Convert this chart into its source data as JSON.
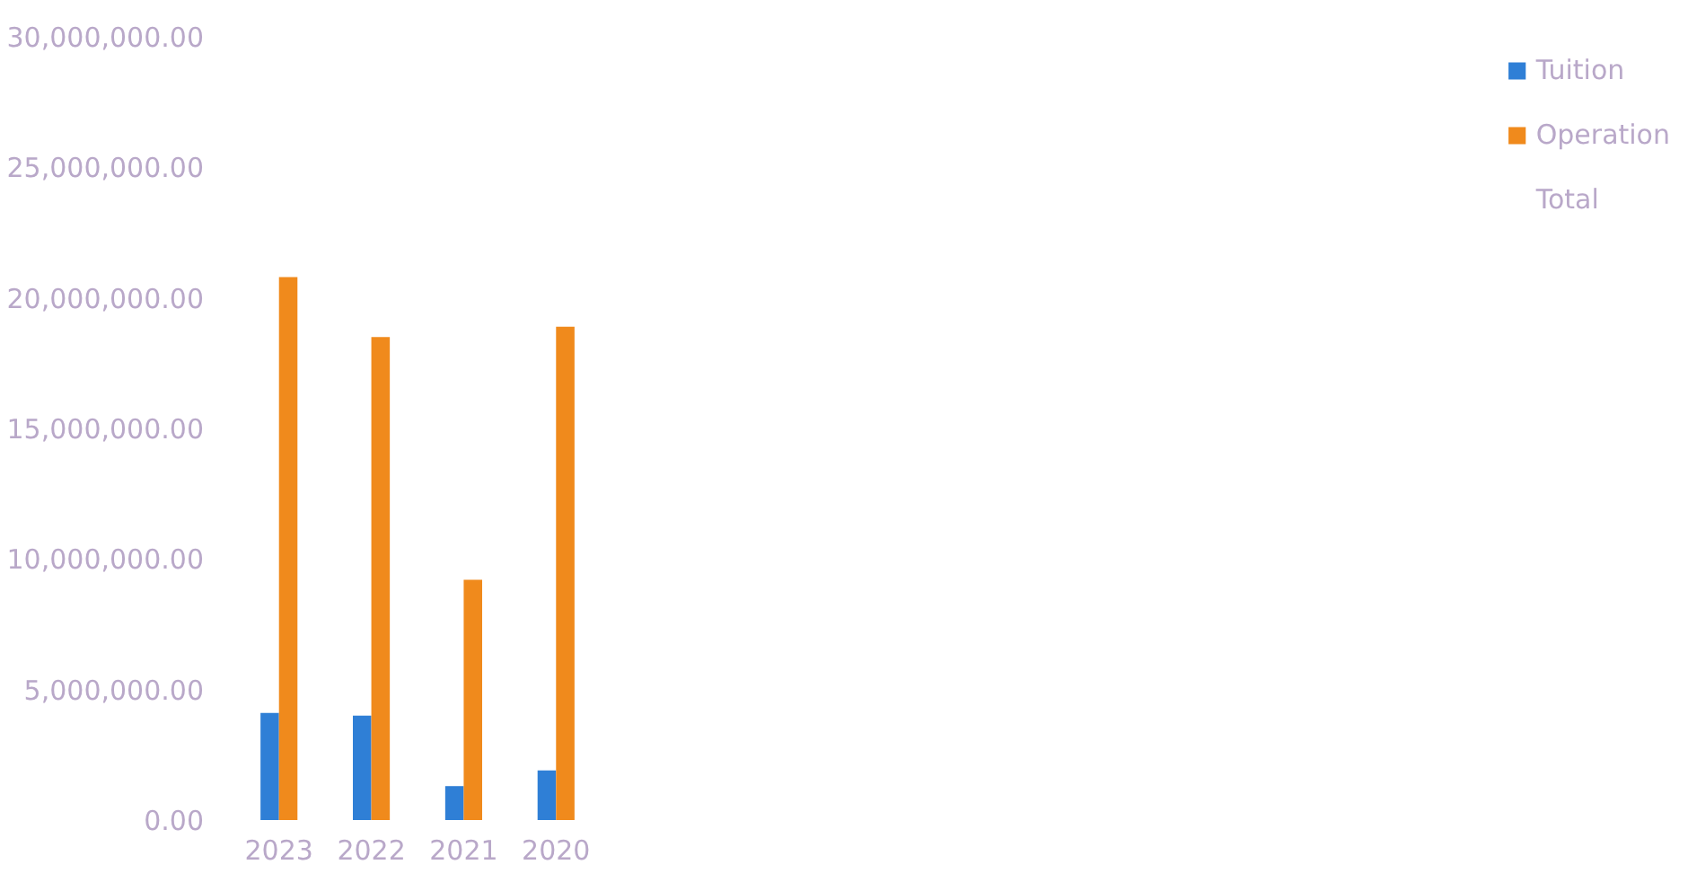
{
  "chart_data": {
    "type": "bar",
    "categories": [
      "2023",
      "2022",
      "2021",
      "2020"
    ],
    "series": [
      {
        "name": "Tuition",
        "color": "#2f7fd6",
        "values": [
          4100000,
          4000000,
          1300000,
          1900000
        ]
      },
      {
        "name": "Operation",
        "color": "#f08a1c",
        "values": [
          20800000,
          18500000,
          9200000,
          18900000
        ]
      },
      {
        "name": "Total",
        "values": [
          null,
          null,
          null,
          null
        ]
      }
    ],
    "ylim": [
      0,
      30000000
    ],
    "yticks": [
      {
        "value": 0,
        "label": "0.00"
      },
      {
        "value": 5000000,
        "label": "5,000,000.00"
      },
      {
        "value": 10000000,
        "label": "10,000,000.00"
      },
      {
        "value": 15000000,
        "label": "15,000,000.00"
      },
      {
        "value": 20000000,
        "label": "20,000,000.00"
      },
      {
        "value": 25000000,
        "label": "25,000,000.00"
      },
      {
        "value": 30000000,
        "label": "30,000,000.00"
      }
    ],
    "grid": false,
    "legend": "right"
  }
}
